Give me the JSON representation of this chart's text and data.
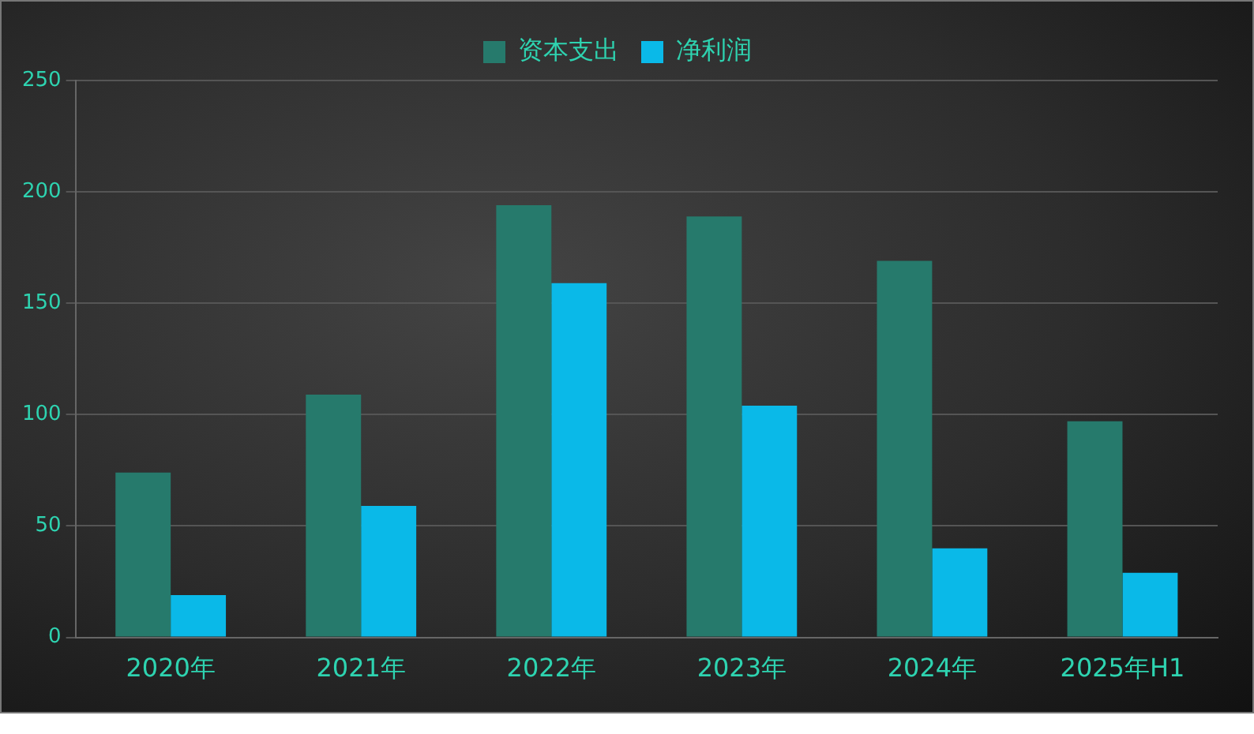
{
  "chart_data": {
    "type": "bar",
    "categories": [
      "2020年",
      "2021年",
      "2022年",
      "2023年",
      "2024年",
      "2025年H1"
    ],
    "series": [
      {
        "name": "资本支出",
        "color": "#267a6c",
        "values": [
          74,
          109,
          194,
          189,
          169,
          97
        ]
      },
      {
        "name": "净利润",
        "color": "#0ab9e8",
        "values": [
          19,
          59,
          159,
          104,
          40,
          29
        ]
      }
    ],
    "ylim": [
      0,
      250
    ],
    "yticks": [
      0,
      50,
      100,
      150,
      200,
      250
    ],
    "grid": "y",
    "legend": "top"
  }
}
